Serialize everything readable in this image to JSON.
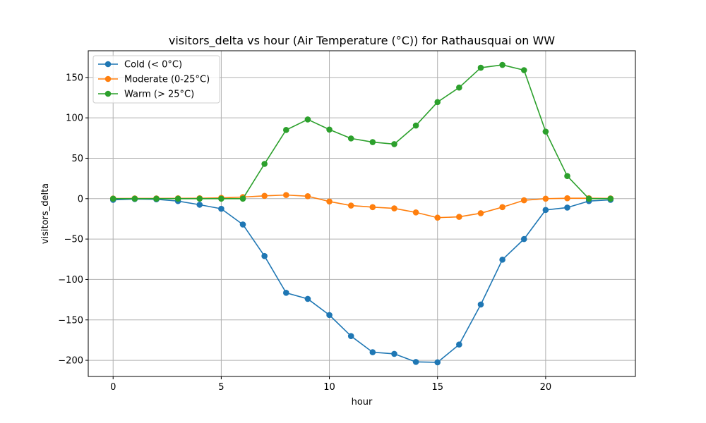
{
  "chart_data": {
    "type": "line",
    "title": "visitors_delta vs hour (Air Temperature (°C)) for Rathausquai on WW",
    "xlabel": "hour",
    "ylabel": "visitors_delta",
    "xlim": [
      -1.15,
      24.15
    ],
    "ylim": [
      -220,
      183
    ],
    "xticks": [
      0,
      5,
      10,
      15,
      20
    ],
    "yticks": [
      -200,
      -150,
      -100,
      -50,
      0,
      50,
      100,
      150
    ],
    "xtick_labels": [
      "0",
      "5",
      "10",
      "15",
      "20"
    ],
    "ytick_labels": [
      "−200",
      "−150",
      "−100",
      "−50",
      "0",
      "50",
      "100",
      "150"
    ],
    "grid": true,
    "legend_position": "upper-left",
    "x": [
      0,
      1,
      2,
      3,
      4,
      5,
      6,
      7,
      8,
      9,
      10,
      11,
      12,
      13,
      14,
      15,
      16,
      17,
      18,
      19,
      20,
      21,
      22,
      23
    ],
    "series": [
      {
        "name": "Cold (< 0°C)",
        "color": "#1f77b4",
        "values": [
          -1.5,
          -0.5,
          -0.8,
          -3,
          -7.5,
          -12.5,
          -32,
          -71,
          -116.5,
          -124,
          -144,
          -170,
          -190,
          -192,
          -202,
          -202.5,
          -180.5,
          -131,
          -75.5,
          -50,
          -14,
          -11,
          -3,
          -1.5
        ]
      },
      {
        "name": "Moderate (0-25°C)",
        "color": "#ff7f0e",
        "values": [
          0.2,
          0.3,
          0.3,
          0.4,
          0.5,
          1,
          2,
          3.5,
          4.5,
          3,
          -3.5,
          -8.5,
          -10.5,
          -12,
          -17,
          -23.5,
          -22.5,
          -18,
          -10.5,
          -2,
          0,
          0.5,
          0.5,
          0.3
        ]
      },
      {
        "name": "Warm (> 25°C)",
        "color": "#2ca02c",
        "values": [
          0,
          0,
          0,
          0,
          0,
          0,
          0,
          43,
          85,
          98,
          85.5,
          74.5,
          70,
          67.5,
          90.5,
          119.5,
          137.5,
          162,
          165.5,
          159,
          83,
          28,
          0,
          0
        ]
      }
    ]
  }
}
